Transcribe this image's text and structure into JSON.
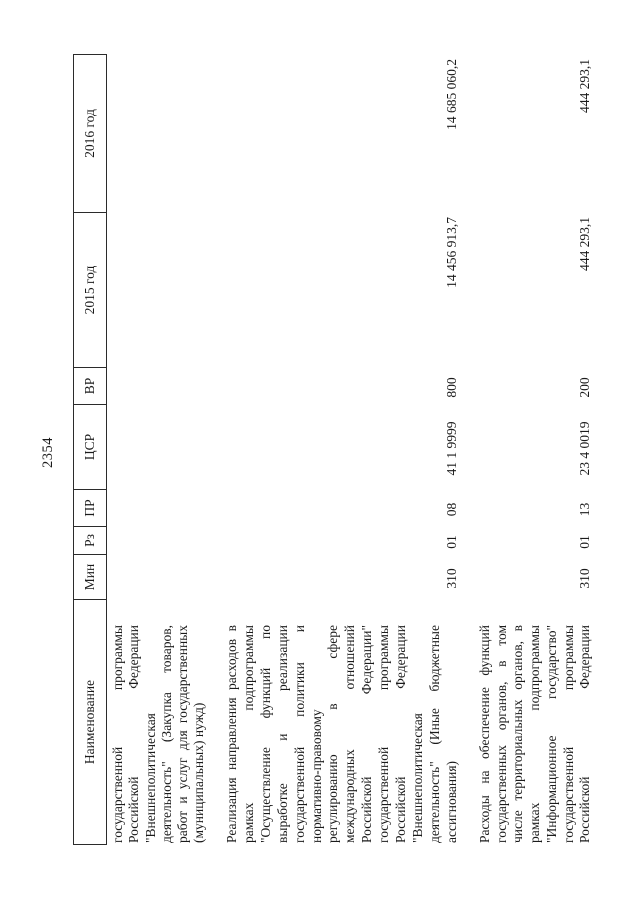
{
  "page_number": "2354",
  "table": {
    "headers": {
      "name": "Наименование",
      "min": "Мин",
      "rz": "Рз",
      "pr": "ПР",
      "csr": "ЦСР",
      "vr": "ВР",
      "y2015": "2015 год",
      "y2016": "2016 год"
    },
    "rows": [
      {
        "name_lines": [
          "государственной программы",
          "Российской Федерации",
          "\"Внешнеполитическая",
          "деятельность\" (Закупка товаров,",
          "работ и услуг для государственных",
          "(муниципальных) нужд)"
        ]
      },
      {
        "name_lines": [
          "Реализация направления расходов в",
          "рамках подпрограммы",
          "\"Осуществление функций по",
          "выработке и реализации",
          "государственной политики и",
          "нормативно-правовому",
          "регулированию в сфере",
          "международных отношений",
          "Российской Федерации\"",
          "государственной программы",
          "Российской Федерации",
          "\"Внешнеполитическая",
          "деятельность\" (Иные бюджетные",
          "ассигнования)"
        ],
        "min": "310",
        "rz": "01",
        "pr": "08",
        "csr": "41 1 9999",
        "vr": "800",
        "y2015": "14 456 913,7",
        "y2016": "14 685 060,2"
      },
      {
        "name_lines": [
          "Расходы на обеспечение функций",
          "государственных органов, в том",
          "числе территориальных органов, в",
          "рамках подпрограммы",
          "\"Информационное государство\"",
          "государственной программы",
          "Российской Федерации"
        ],
        "min": "310",
        "rz": "01",
        "pr": "13",
        "csr": "23 4 0019",
        "vr": "200",
        "y2015": "444 293,1",
        "y2016": "444 293,1"
      }
    ]
  }
}
